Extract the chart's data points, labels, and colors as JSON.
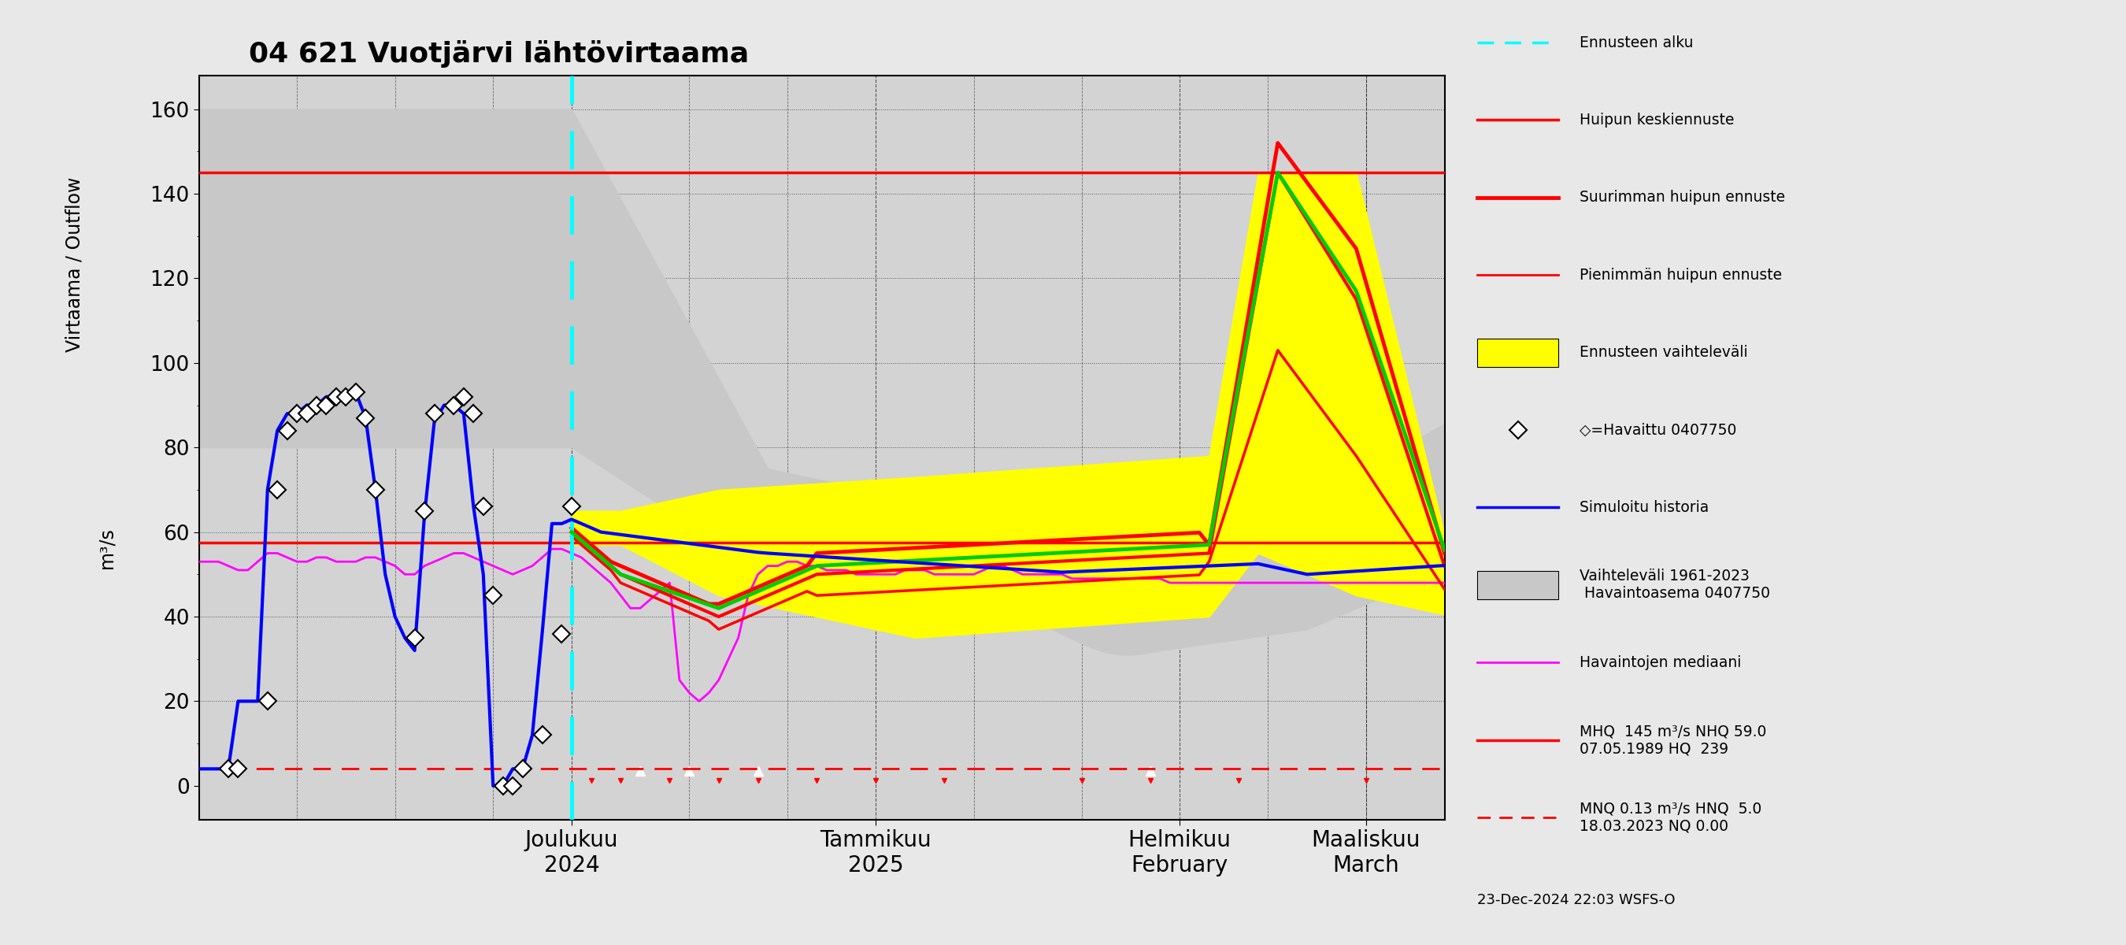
{
  "title": "04 621 Vuotjärvi lähtövirtaama",
  "ylabel1": "Virtaama / Outflow",
  "ylabel2": "m³/s",
  "ylim": [
    -8,
    168
  ],
  "yticks": [
    0,
    20,
    40,
    60,
    80,
    100,
    120,
    140,
    160
  ],
  "mhq_line": 145,
  "median_line": 57.5,
  "low_dashed_line": 4.0,
  "n_days": 128,
  "forecast_start_day": 38,
  "legend_entries": [
    "Ennusteen alku",
    "Huipun keskiennuste",
    "Suurimman huipun ennuste",
    "Pienimmän huipun ennuste",
    "Ennusteen vaihteleväli",
    "◇=Havaittu 0407750",
    "Simuloitu historia",
    "Vaihteleväli 1961-2023\n Havaintoasema 0407750",
    "Havaintojen mediaani",
    "MHQ  145 m³/s NHQ 59.0\n07.05.1989 HQ  239",
    "MNQ 0.13 m³/s HNQ  5.0\n18.03.2023 NQ 0.00"
  ],
  "footer_text": "23-Dec-2024 22:03 WSFS-O",
  "xtick_labels": [
    "Joulukuu\n2024",
    "Tammikuu\n2025",
    "Helmikuu\nFebruary",
    "Maaliskuu\nMarch"
  ],
  "xtick_positions": [
    38,
    69,
    100,
    119
  ],
  "plot_bg": "#d3d3d3",
  "fig_bg": "#e8e8e8",
  "hist_band_color": "#c8c8c8",
  "yellow_color": "#ffff00",
  "cyan_color": "#00ffff",
  "red_color": "#ff0000",
  "blue_color": "#0000ff",
  "green_color": "#00cc00",
  "magenta_color": "#ff00ff"
}
